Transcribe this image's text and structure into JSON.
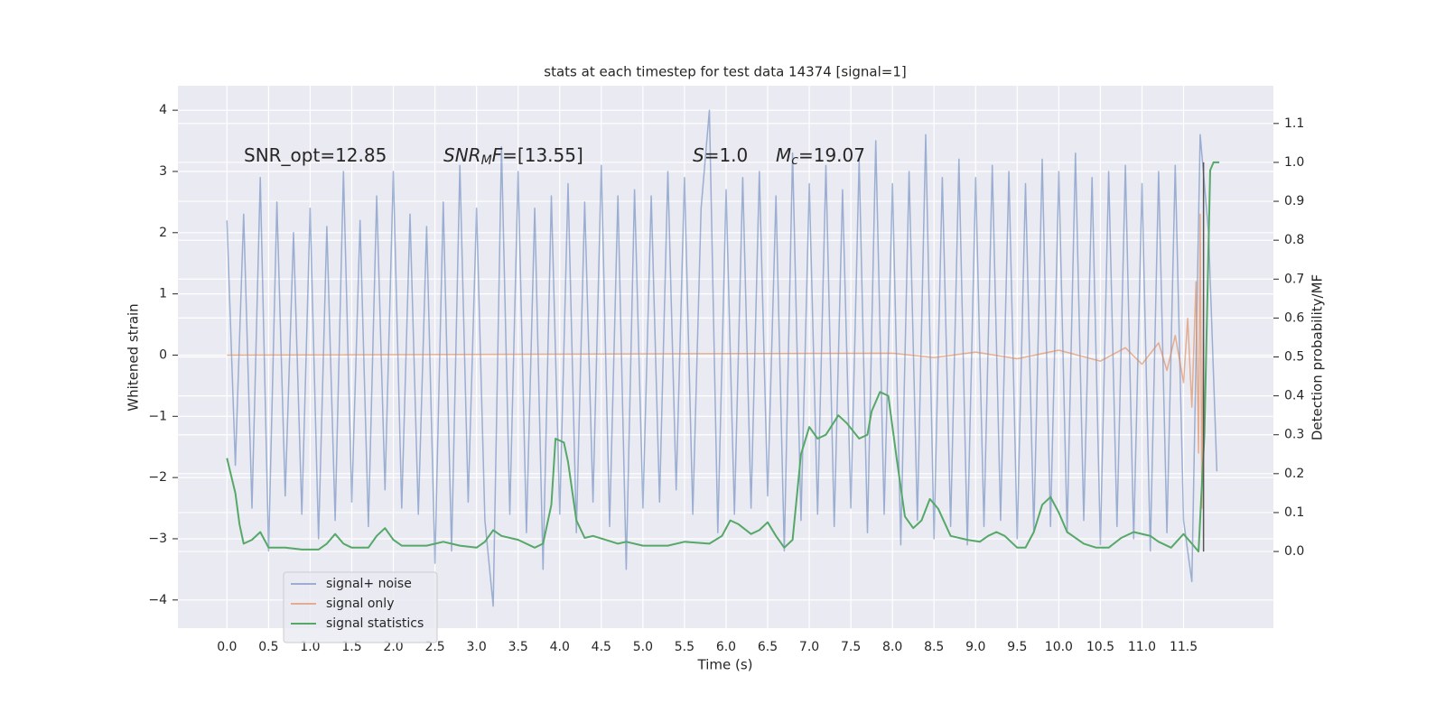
{
  "chart_data": {
    "type": "line",
    "title": "stats at each timestep for test data 14374 [signal=1]",
    "xlabel": "Time (s)",
    "ylabel": "Whitened strain",
    "y2label": "Detection probability/MF",
    "grid": true,
    "legend": "lower left",
    "xlim": [
      -0.59,
      12.58
    ],
    "ylim": [
      -4.46,
      4.4
    ],
    "y2lim": [
      -0.197,
      1.197
    ],
    "xticks": [
      {
        "value": 0,
        "label": "0.0"
      },
      {
        "value": 0.5,
        "label": "0.5"
      },
      {
        "value": 1,
        "label": "1.0"
      },
      {
        "value": 1.5,
        "label": "1.5"
      },
      {
        "value": 2,
        "label": "2.0"
      },
      {
        "value": 2.5,
        "label": "2.5"
      },
      {
        "value": 3,
        "label": "3.0"
      },
      {
        "value": 3.5,
        "label": "3.5"
      },
      {
        "value": 4,
        "label": "4.0"
      },
      {
        "value": 4.5,
        "label": "4.5"
      },
      {
        "value": 5,
        "label": "5.0"
      },
      {
        "value": 5.5,
        "label": "5.5"
      },
      {
        "value": 6,
        "label": "6.0"
      },
      {
        "value": 6.5,
        "label": "6.5"
      },
      {
        "value": 7,
        "label": "7.0"
      },
      {
        "value": 7.5,
        "label": "7.5"
      },
      {
        "value": 8,
        "label": "8.0"
      },
      {
        "value": 8.5,
        "label": "8.5"
      },
      {
        "value": 9,
        "label": "9.0"
      },
      {
        "value": 9.5,
        "label": "9.5"
      },
      {
        "value": 10,
        "label": "10.0"
      },
      {
        "value": 10.5,
        "label": "10.5"
      },
      {
        "value": 11,
        "label": "11.0"
      },
      {
        "value": 11.5,
        "label": "11.5"
      }
    ],
    "yticks": [
      {
        "value": -4,
        "label": "−4"
      },
      {
        "value": -3,
        "label": "−3"
      },
      {
        "value": -2,
        "label": "−2"
      },
      {
        "value": -1,
        "label": "−1"
      },
      0,
      1,
      2,
      3,
      4
    ],
    "y2ticks": [
      {
        "value": 0,
        "label": "0.0"
      },
      {
        "value": 0.1,
        "label": "0.1"
      },
      {
        "value": 0.2,
        "label": "0.2"
      },
      {
        "value": 0.3,
        "label": "0.3"
      },
      {
        "value": 0.4,
        "label": "0.4"
      },
      {
        "value": 0.5,
        "label": "0.5"
      },
      {
        "value": 0.6,
        "label": "0.6"
      },
      {
        "value": 0.7,
        "label": "0.7"
      },
      {
        "value": 0.8,
        "label": "0.8"
      },
      {
        "value": 0.9,
        "label": "0.9"
      },
      {
        "value": 1,
        "label": "1.0"
      },
      {
        "value": 1.1,
        "label": "1.1"
      }
    ],
    "annotations": [
      [
        {
          "text": "SNR_opt=12.85"
        }
      ],
      [
        {
          "text": "SNR",
          "style": "italic"
        },
        {
          "text": "M",
          "style": "italic-sub"
        },
        {
          "text": "F",
          "style": "italic"
        },
        {
          "text": "=[13.55]"
        }
      ],
      [
        {
          "text": "S",
          "style": "italic"
        },
        {
          "text": "=1.0"
        }
      ],
      [
        {
          "text": "M",
          "style": "italic"
        },
        {
          "text": "c",
          "style": "italic-sub"
        },
        {
          "text": "=19.07"
        }
      ]
    ],
    "vline": {
      "x": 11.74,
      "ymin": 0,
      "ymax": 1,
      "axis": "y2",
      "color": "#555555"
    },
    "series": [
      {
        "name": "signal+ noise",
        "color": "#4c72b0",
        "alpha": 0.5,
        "x": [
          0,
          0.1,
          0.2,
          0.3,
          0.4,
          0.5,
          0.6,
          0.7,
          0.8,
          0.9,
          1,
          1.1,
          1.2,
          1.3,
          1.4,
          1.5,
          1.6,
          1.7,
          1.8,
          1.9,
          2,
          2.1,
          2.2,
          2.3,
          2.4,
          2.5,
          2.6,
          2.7,
          2.8,
          2.9,
          3,
          3.1,
          3.2,
          3.3,
          3.4,
          3.5,
          3.6,
          3.7,
          3.8,
          3.9,
          4,
          4.1,
          4.2,
          4.3,
          4.4,
          4.5,
          4.6,
          4.7,
          4.8,
          4.9,
          5,
          5.1,
          5.2,
          5.3,
          5.4,
          5.5,
          5.6,
          5.7,
          5.8,
          5.9,
          6,
          6.1,
          6.2,
          6.3,
          6.4,
          6.5,
          6.6,
          6.7,
          6.8,
          6.9,
          7,
          7.1,
          7.2,
          7.3,
          7.4,
          7.5,
          7.6,
          7.7,
          7.8,
          7.9,
          8,
          8.1,
          8.2,
          8.3,
          8.4,
          8.5,
          8.6,
          8.7,
          8.8,
          8.9,
          9,
          9.1,
          9.2,
          9.3,
          9.4,
          9.5,
          9.6,
          9.7,
          9.8,
          9.9,
          10,
          10.1,
          10.2,
          10.3,
          10.4,
          10.5,
          10.6,
          10.7,
          10.8,
          10.9,
          11,
          11.1,
          11.2,
          11.3,
          11.4,
          11.5,
          11.6,
          11.7,
          11.8,
          11.9
        ],
        "values": [
          2.2,
          -1.8,
          2.3,
          -2.5,
          2.9,
          -3.2,
          2.5,
          -2.3,
          2.0,
          -2.6,
          2.4,
          -3.0,
          2.1,
          -2.7,
          3.0,
          -2.4,
          2.2,
          -2.8,
          2.6,
          -2.2,
          3.0,
          -2.5,
          2.3,
          -2.6,
          2.1,
          -3.4,
          2.5,
          -3.2,
          3.1,
          -2.4,
          2.4,
          -2.7,
          -4.1,
          3.4,
          -2.6,
          3.0,
          -2.9,
          2.4,
          -3.5,
          2.6,
          -2.6,
          2.8,
          -2.9,
          2.5,
          -2.4,
          3.1,
          -2.8,
          2.6,
          -3.5,
          2.7,
          -2.5,
          2.6,
          -2.4,
          3.0,
          -2.2,
          2.9,
          -2.6,
          2.4,
          4.0,
          -2.9,
          2.7,
          -2.6,
          2.9,
          -2.5,
          3.0,
          -2.3,
          2.6,
          -3.2,
          3.3,
          -2.7,
          2.8,
          -2.6,
          3.1,
          -2.8,
          2.7,
          -2.5,
          3.2,
          -2.9,
          3.5,
          -2.6,
          2.8,
          -3.1,
          3.0,
          -2.7,
          3.6,
          -3.0,
          2.9,
          -2.8,
          3.2,
          -3.1,
          2.9,
          -2.8,
          3.1,
          -2.7,
          3.0,
          -3.0,
          2.8,
          -2.9,
          3.2,
          -2.8,
          3.0,
          -2.9,
          3.3,
          -2.7,
          2.9,
          -3.1,
          3.0,
          -2.8,
          3.1,
          -3.0,
          2.8,
          -3.2,
          3.0,
          -2.9,
          3.1,
          -2.7,
          -3.7,
          3.6,
          2.0,
          -1.9
        ]
      },
      {
        "name": "signal only",
        "color": "#dd8452",
        "alpha": 0.6,
        "x": [
          0,
          8.0,
          8.5,
          9.0,
          9.5,
          10.0,
          10.5,
          10.8,
          11.0,
          11.2,
          11.3,
          11.4,
          11.5,
          11.55,
          11.6,
          11.65,
          11.68,
          11.7,
          11.72,
          11.74
        ],
        "values": [
          0,
          0.03,
          -0.04,
          0.05,
          -0.06,
          0.08,
          -0.1,
          0.12,
          -0.15,
          0.2,
          -0.25,
          0.32,
          -0.45,
          0.6,
          -0.85,
          1.2,
          -1.6,
          2.3,
          -2.5,
          1.0
        ]
      },
      {
        "name": "signal statistics",
        "color": "#55a868",
        "alpha": 1,
        "axis": "y2",
        "x": [
          0.0,
          0.1,
          0.15,
          0.2,
          0.3,
          0.4,
          0.45,
          0.5,
          0.7,
          0.9,
          1.1,
          1.2,
          1.3,
          1.4,
          1.5,
          1.7,
          1.8,
          1.9,
          2.0,
          2.1,
          2.4,
          2.6,
          2.8,
          3.0,
          3.1,
          3.2,
          3.3,
          3.5,
          3.7,
          3.8,
          3.9,
          3.95,
          4.05,
          4.1,
          4.2,
          4.3,
          4.4,
          4.55,
          4.7,
          4.8,
          5.0,
          5.3,
          5.5,
          5.8,
          5.95,
          6.05,
          6.15,
          6.3,
          6.4,
          6.5,
          6.6,
          6.7,
          6.8,
          6.9,
          7.0,
          7.1,
          7.2,
          7.35,
          7.45,
          7.6,
          7.7,
          7.75,
          7.85,
          7.95,
          8.05,
          8.15,
          8.25,
          8.35,
          8.45,
          8.55,
          8.7,
          8.9,
          9.05,
          9.15,
          9.25,
          9.35,
          9.5,
          9.6,
          9.7,
          9.8,
          9.9,
          10.0,
          10.1,
          10.3,
          10.45,
          10.6,
          10.75,
          10.9,
          11.1,
          11.2,
          11.35,
          11.5,
          11.6,
          11.68,
          11.75,
          11.82,
          11.86,
          11.93
        ],
        "values": [
          0.24,
          0.15,
          0.07,
          0.02,
          0.03,
          0.05,
          0.03,
          0.01,
          0.01,
          0.005,
          0.005,
          0.02,
          0.045,
          0.02,
          0.01,
          0.01,
          0.04,
          0.06,
          0.03,
          0.015,
          0.015,
          0.025,
          0.015,
          0.01,
          0.025,
          0.055,
          0.04,
          0.03,
          0.01,
          0.02,
          0.12,
          0.29,
          0.28,
          0.23,
          0.08,
          0.035,
          0.04,
          0.03,
          0.02,
          0.025,
          0.015,
          0.015,
          0.025,
          0.02,
          0.04,
          0.08,
          0.07,
          0.045,
          0.055,
          0.075,
          0.04,
          0.01,
          0.03,
          0.25,
          0.32,
          0.29,
          0.3,
          0.35,
          0.33,
          0.29,
          0.3,
          0.36,
          0.41,
          0.4,
          0.24,
          0.09,
          0.06,
          0.08,
          0.135,
          0.11,
          0.04,
          0.03,
          0.025,
          0.04,
          0.05,
          0.04,
          0.01,
          0.01,
          0.05,
          0.12,
          0.14,
          0.1,
          0.05,
          0.02,
          0.01,
          0.01,
          0.035,
          0.05,
          0.04,
          0.025,
          0.01,
          0.045,
          0.02,
          0.0,
          0.3,
          0.98,
          1.0,
          1.0
        ]
      }
    ]
  }
}
